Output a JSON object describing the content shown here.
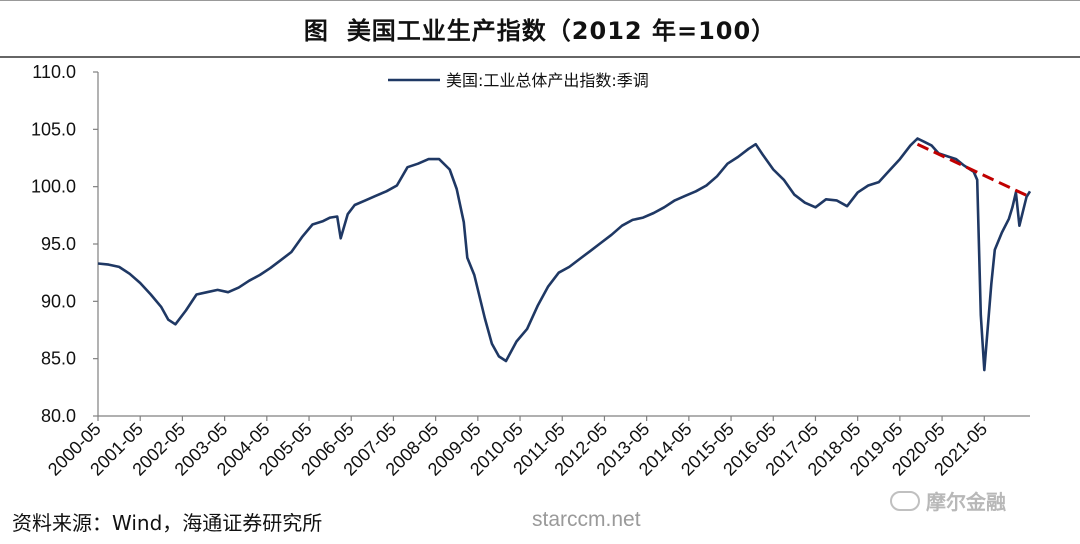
{
  "header": {
    "prefix": "图",
    "title": "美国工业生产指数（2012 年=100）"
  },
  "footer": {
    "source": "资料来源：Wind，海通证券研究所",
    "watermark_site": "starccm.net",
    "watermark_brand": "摩尔金融"
  },
  "colors": {
    "series": "#1f3864",
    "trend": "#c00000",
    "axis": "#808080"
  },
  "chart_data": {
    "type": "line",
    "title": "美国工业生产指数（2012 年=100）",
    "ylim": [
      80,
      110
    ],
    "yticks": [
      "110.0",
      "105.0",
      "100.0",
      "95.0",
      "90.0",
      "85.0",
      "80.0"
    ],
    "ytick_values": [
      110,
      105,
      100,
      95,
      90,
      85,
      80
    ],
    "xlim": [
      "2000-05",
      "2021-05"
    ],
    "xticks": [
      "2000-05",
      "2001-05",
      "2002-05",
      "2003-05",
      "2004-05",
      "2005-05",
      "2006-05",
      "2007-05",
      "2008-05",
      "2009-05",
      "2010-05",
      "2011-05",
      "2012-05",
      "2013-05",
      "2014-05",
      "2015-05",
      "2016-05",
      "2017-05",
      "2018-05",
      "2019-05",
      "2020-05",
      "2021-05"
    ],
    "legend_position": "top-center",
    "grid": false,
    "series": [
      {
        "name": "美国:工业总体产出指数:季调",
        "points": [
          [
            "2000-05",
            93.3
          ],
          [
            "2000-08",
            93.2
          ],
          [
            "2000-11",
            93.0
          ],
          [
            "2001-02",
            92.4
          ],
          [
            "2001-05",
            91.6
          ],
          [
            "2001-08",
            90.6
          ],
          [
            "2001-11",
            89.5
          ],
          [
            "2002-01",
            88.4
          ],
          [
            "2002-03",
            88.0
          ],
          [
            "2002-06",
            89.2
          ],
          [
            "2002-09",
            90.6
          ],
          [
            "2002-12",
            90.8
          ],
          [
            "2003-03",
            91.0
          ],
          [
            "2003-06",
            90.8
          ],
          [
            "2003-09",
            91.2
          ],
          [
            "2003-12",
            91.8
          ],
          [
            "2004-03",
            92.3
          ],
          [
            "2004-06",
            92.9
          ],
          [
            "2004-09",
            93.6
          ],
          [
            "2004-12",
            94.3
          ],
          [
            "2005-03",
            95.6
          ],
          [
            "2005-06",
            96.7
          ],
          [
            "2005-09",
            97.0
          ],
          [
            "2005-11",
            97.3
          ],
          [
            "2006-01",
            97.4
          ],
          [
            "2006-02",
            95.5
          ],
          [
            "2006-04",
            97.6
          ],
          [
            "2006-06",
            98.4
          ],
          [
            "2006-09",
            98.8
          ],
          [
            "2006-12",
            99.2
          ],
          [
            "2007-03",
            99.6
          ],
          [
            "2007-06",
            100.1
          ],
          [
            "2007-09",
            101.7
          ],
          [
            "2007-12",
            102.0
          ],
          [
            "2008-03",
            102.4
          ],
          [
            "2008-06",
            102.4
          ],
          [
            "2008-09",
            101.5
          ],
          [
            "2008-11",
            99.8
          ],
          [
            "2009-01",
            96.9
          ],
          [
            "2009-02",
            93.8
          ],
          [
            "2009-04",
            92.3
          ],
          [
            "2009-07",
            88.5
          ],
          [
            "2009-09",
            86.3
          ],
          [
            "2009-11",
            85.2
          ],
          [
            "2010-01",
            84.8
          ],
          [
            "2010-04",
            86.5
          ],
          [
            "2010-07",
            87.6
          ],
          [
            "2010-10",
            89.6
          ],
          [
            "2011-01",
            91.3
          ],
          [
            "2011-04",
            92.5
          ],
          [
            "2011-07",
            93.0
          ],
          [
            "2011-10",
            93.7
          ],
          [
            "2012-01",
            94.4
          ],
          [
            "2012-04",
            95.1
          ],
          [
            "2012-07",
            95.8
          ],
          [
            "2012-10",
            96.6
          ],
          [
            "2013-01",
            97.1
          ],
          [
            "2013-04",
            97.3
          ],
          [
            "2013-07",
            97.7
          ],
          [
            "2013-10",
            98.2
          ],
          [
            "2014-01",
            98.8
          ],
          [
            "2014-04",
            99.2
          ],
          [
            "2014-07",
            99.6
          ],
          [
            "2014-10",
            100.1
          ],
          [
            "2015-01",
            100.9
          ],
          [
            "2015-04",
            102.0
          ],
          [
            "2015-07",
            102.6
          ],
          [
            "2015-10",
            103.3
          ],
          [
            "2015-12",
            103.7
          ],
          [
            "2016-02",
            102.8
          ],
          [
            "2016-05",
            101.5
          ],
          [
            "2016-08",
            100.6
          ],
          [
            "2016-11",
            99.3
          ],
          [
            "2017-02",
            98.6
          ],
          [
            "2017-05",
            98.2
          ],
          [
            "2017-08",
            98.9
          ],
          [
            "2017-11",
            98.8
          ],
          [
            "2018-02",
            98.3
          ],
          [
            "2018-05",
            99.5
          ],
          [
            "2018-08",
            100.1
          ],
          [
            "2018-11",
            100.4
          ],
          [
            "2019-02",
            101.4
          ],
          [
            "2019-05",
            102.4
          ],
          [
            "2019-08",
            103.6
          ],
          [
            "2019-10",
            104.2
          ],
          [
            "2019-12",
            103.9
          ],
          [
            "2020-02",
            103.6
          ],
          [
            "2020-04",
            102.9
          ],
          [
            "2020-07",
            102.6
          ],
          [
            "2020-09",
            102.4
          ],
          [
            "2020-11",
            101.9
          ],
          [
            "2021-01",
            101.5
          ],
          [
            "2021-02",
            101.3
          ],
          [
            "2021-03",
            100.6
          ],
          [
            "2021-04",
            88.8
          ],
          [
            "2021-05",
            84.0
          ],
          [
            "2021-07",
            91.5
          ],
          [
            "2021-08",
            94.5
          ],
          [
            "2021-10",
            96.0
          ],
          [
            "2021-12",
            97.2
          ],
          [
            "2022-01",
            98.2
          ],
          [
            "2022-02",
            99.5
          ],
          [
            "2022-03",
            96.6
          ],
          [
            "2022-05",
            99.1
          ],
          [
            "2022-06",
            99.6
          ]
        ]
      }
    ],
    "trend_line": {
      "name": "",
      "start": [
        "2019-10",
        103.7
      ],
      "end": [
        "2022-06",
        99.1
      ],
      "style": "dashed"
    }
  }
}
